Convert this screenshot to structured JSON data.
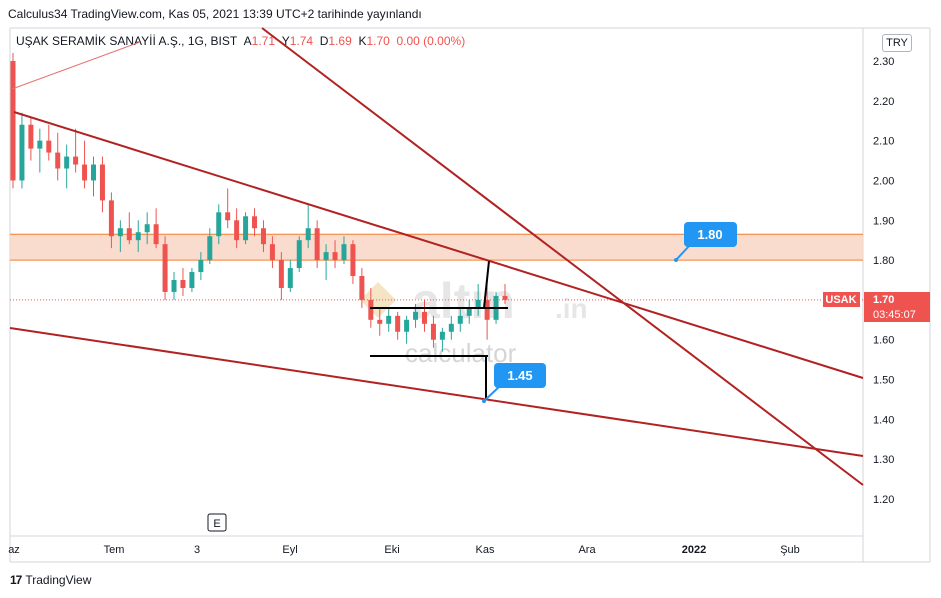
{
  "header": {
    "text": "Calculus34 TradingView.com, Kas 05, 2021 13:39 UTC+2 tarihinde yayınlandı"
  },
  "symbol": {
    "name": "UŞAK SERAMİK SANAYİİ A.Ş., 1G, BIST",
    "o_label": "A",
    "o_value": "1.71",
    "h_label": "Y",
    "h_value": "1.74",
    "l_label": "D",
    "l_value": "1.69",
    "c_label": "K",
    "c_value": "1.70",
    "change": "0.00 (0.00%)"
  },
  "currency": "TRY",
  "footer": {
    "logo": "17",
    "brand": "TradingView"
  },
  "colors": {
    "up": "#26a69a",
    "down": "#ef5350",
    "trendline": "#b22222",
    "zone_fill": "#f9d3c3",
    "zone_border": "#ef7f2f",
    "callout": "#2196f3",
    "price_line": "#ef5350"
  },
  "chart_data": {
    "type": "candlestick",
    "title": "",
    "xlabel": "",
    "ylabel": "",
    "ylim": [
      1.15,
      2.37
    ],
    "y_ticks": [
      "2.30",
      "2.20",
      "2.10",
      "2.00",
      "1.90",
      "1.80",
      "1.70",
      "1.60",
      "1.50",
      "1.40",
      "1.30",
      "1.20"
    ],
    "x_ticks": [
      "az",
      "Tem",
      "3",
      "Eyl",
      "Eki",
      "Kas",
      "Ara",
      "2022",
      "Şub"
    ],
    "last_price": {
      "symbol": "USAK",
      "value": "1.70",
      "countdown": "03:45:07"
    },
    "zone": {
      "from": 1.8,
      "to": 1.865
    },
    "callouts": [
      {
        "label": "1.80",
        "value": 1.8
      },
      {
        "label": "1.45",
        "value": 1.45
      }
    ],
    "marker": "E",
    "watermark": {
      "brand": "altın",
      "suffix": ".in",
      "sub": "calculator"
    },
    "candles_approx": [
      [
        2.3,
        2.32,
        1.98,
        2.0
      ],
      [
        2.0,
        2.17,
        1.98,
        2.14
      ],
      [
        2.14,
        2.16,
        2.05,
        2.08
      ],
      [
        2.08,
        2.13,
        2.02,
        2.1
      ],
      [
        2.1,
        2.14,
        2.05,
        2.07
      ],
      [
        2.07,
        2.12,
        2.0,
        2.03
      ],
      [
        2.03,
        2.09,
        1.98,
        2.06
      ],
      [
        2.06,
        2.13,
        2.02,
        2.04
      ],
      [
        2.04,
        2.1,
        1.98,
        2.0
      ],
      [
        2.0,
        2.06,
        1.96,
        2.04
      ],
      [
        2.04,
        2.06,
        1.92,
        1.95
      ],
      [
        1.95,
        1.97,
        1.83,
        1.86
      ],
      [
        1.86,
        1.9,
        1.82,
        1.88
      ],
      [
        1.88,
        1.92,
        1.84,
        1.85
      ],
      [
        1.85,
        1.9,
        1.82,
        1.87
      ],
      [
        1.87,
        1.92,
        1.84,
        1.89
      ],
      [
        1.89,
        1.93,
        1.83,
        1.84
      ],
      [
        1.84,
        1.86,
        1.7,
        1.72
      ],
      [
        1.72,
        1.77,
        1.7,
        1.75
      ],
      [
        1.75,
        1.78,
        1.71,
        1.73
      ],
      [
        1.73,
        1.78,
        1.72,
        1.77
      ],
      [
        1.77,
        1.82,
        1.75,
        1.8
      ],
      [
        1.8,
        1.88,
        1.79,
        1.86
      ],
      [
        1.86,
        1.94,
        1.84,
        1.92
      ],
      [
        1.92,
        1.98,
        1.88,
        1.9
      ],
      [
        1.9,
        1.93,
        1.83,
        1.85
      ],
      [
        1.85,
        1.92,
        1.84,
        1.91
      ],
      [
        1.91,
        1.93,
        1.86,
        1.88
      ],
      [
        1.88,
        1.9,
        1.82,
        1.84
      ],
      [
        1.84,
        1.86,
        1.78,
        1.8
      ],
      [
        1.8,
        1.82,
        1.7,
        1.73
      ],
      [
        1.73,
        1.8,
        1.72,
        1.78
      ],
      [
        1.78,
        1.86,
        1.77,
        1.85
      ],
      [
        1.85,
        1.94,
        1.83,
        1.88
      ],
      [
        1.88,
        1.9,
        1.78,
        1.8
      ],
      [
        1.8,
        1.84,
        1.75,
        1.82
      ],
      [
        1.82,
        1.85,
        1.78,
        1.8
      ],
      [
        1.8,
        1.86,
        1.79,
        1.84
      ],
      [
        1.84,
        1.85,
        1.74,
        1.76
      ],
      [
        1.76,
        1.78,
        1.68,
        1.7
      ],
      [
        1.7,
        1.73,
        1.63,
        1.65
      ],
      [
        1.65,
        1.68,
        1.61,
        1.64
      ],
      [
        1.64,
        1.68,
        1.62,
        1.66
      ],
      [
        1.66,
        1.67,
        1.6,
        1.62
      ],
      [
        1.62,
        1.66,
        1.59,
        1.65
      ],
      [
        1.65,
        1.69,
        1.63,
        1.67
      ],
      [
        1.67,
        1.7,
        1.62,
        1.64
      ],
      [
        1.64,
        1.66,
        1.58,
        1.6
      ],
      [
        1.6,
        1.63,
        1.57,
        1.62
      ],
      [
        1.62,
        1.66,
        1.6,
        1.64
      ],
      [
        1.64,
        1.68,
        1.62,
        1.66
      ],
      [
        1.66,
        1.7,
        1.64,
        1.68
      ],
      [
        1.68,
        1.74,
        1.66,
        1.7
      ],
      [
        1.7,
        1.76,
        1.6,
        1.65
      ],
      [
        1.65,
        1.72,
        1.64,
        1.71
      ],
      [
        1.71,
        1.74,
        1.69,
        1.7
      ]
    ]
  }
}
